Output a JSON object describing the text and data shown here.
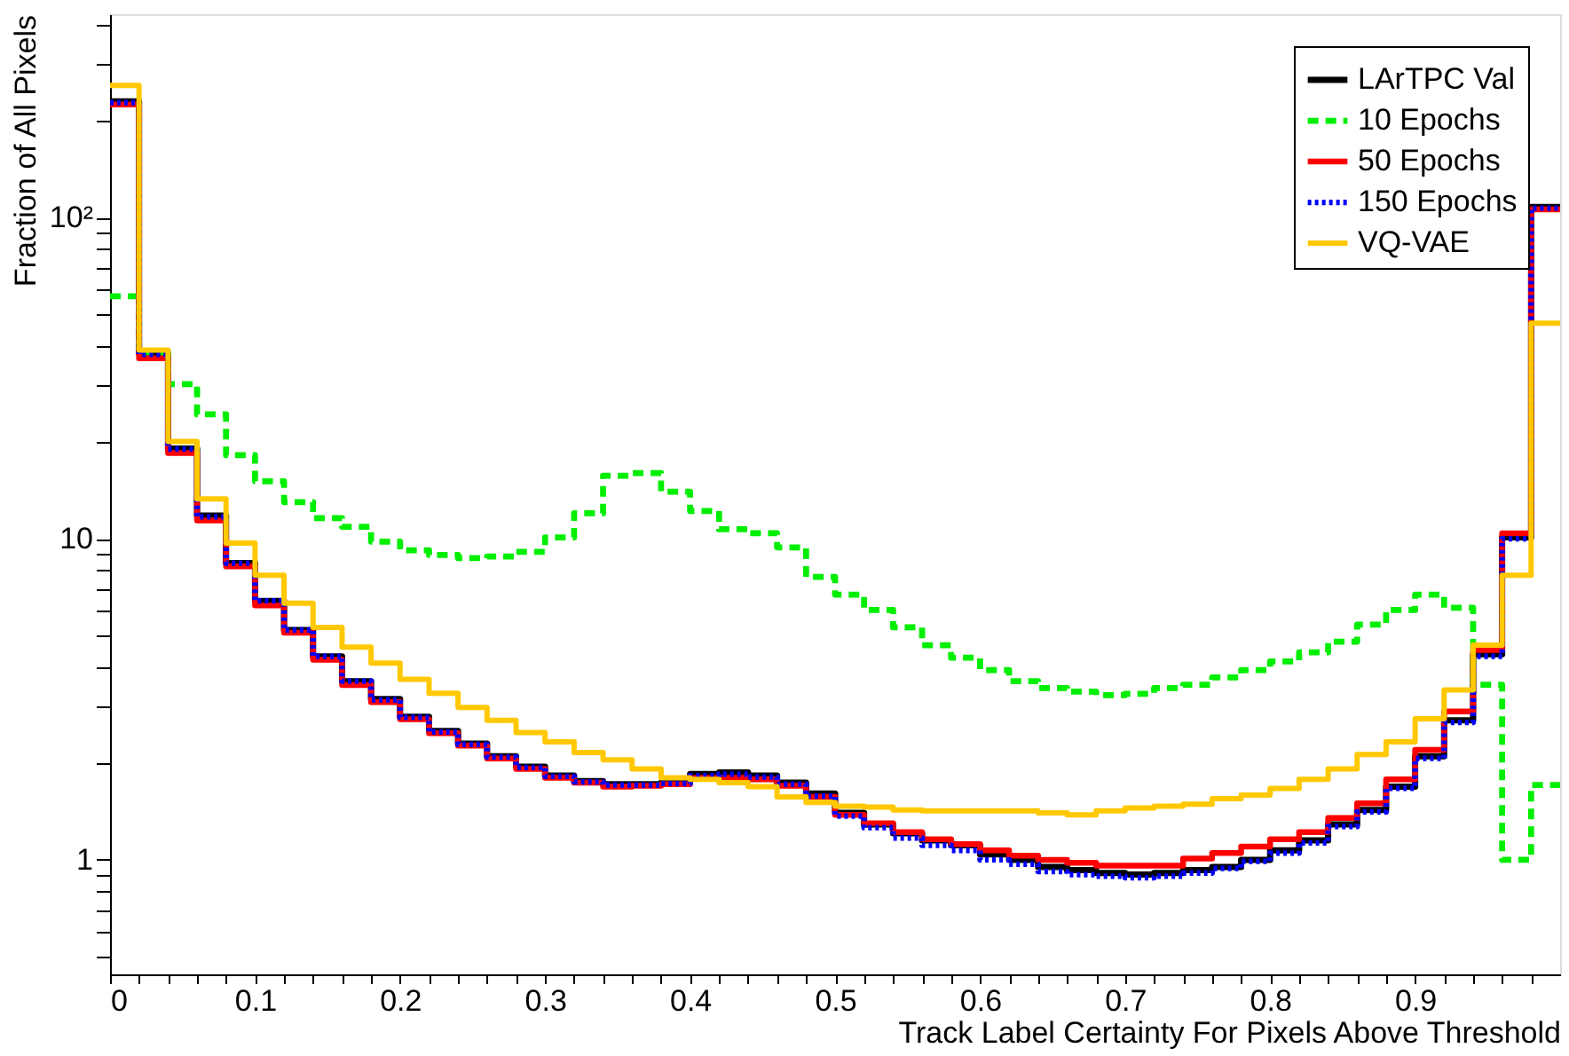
{
  "chart_data": {
    "type": "histogram",
    "xlabel": "Track Label Certainty For Pixels Above Threshold",
    "ylabel": "Fraction of All Pixels",
    "bins": [
      0,
      0.02,
      0.04,
      0.06,
      0.08,
      0.1,
      0.12,
      0.14,
      0.16,
      0.18,
      0.2,
      0.22,
      0.24,
      0.26,
      0.28,
      0.3,
      0.32,
      0.34,
      0.36,
      0.38,
      0.4,
      0.42,
      0.44,
      0.46,
      0.48,
      0.5,
      0.52,
      0.54,
      0.56,
      0.58,
      0.6,
      0.62,
      0.64,
      0.66,
      0.68,
      0.7,
      0.72,
      0.74,
      0.76,
      0.78,
      0.8,
      0.82,
      0.84,
      0.86,
      0.88,
      0.9,
      0.92,
      0.94,
      0.96,
      0.98,
      1.0
    ],
    "series": [
      {
        "name": "LArTPC Val",
        "color": "#000000",
        "line_style": "solid",
        "values": [
          230,
          37.7,
          19.1,
          11.8,
          8.4,
          6.4,
          5.2,
          4.3,
          3.6,
          3.17,
          2.79,
          2.52,
          2.3,
          2.1,
          1.95,
          1.83,
          1.76,
          1.72,
          1.72,
          1.74,
          1.85,
          1.87,
          1.83,
          1.74,
          1.61,
          1.4,
          1.29,
          1.21,
          1.15,
          1.11,
          1.04,
          1.0,
          0.95,
          0.93,
          0.91,
          0.9,
          0.91,
          0.93,
          0.95,
          1.0,
          1.07,
          1.15,
          1.29,
          1.43,
          1.69,
          2.1,
          2.72,
          4.37,
          10.1,
          108
        ]
      },
      {
        "name": "10 Epochs",
        "color": "#00ee00",
        "line_style": "dashed",
        "values": [
          56.9,
          38,
          30.3,
          24.4,
          18.2,
          15.1,
          13.0,
          11.6,
          10.9,
          9.8,
          9.2,
          8.9,
          8.7,
          8.8,
          9.1,
          10.1,
          12.0,
          15.7,
          16.0,
          14.0,
          12.2,
          10.7,
          10.4,
          9.4,
          7.6,
          6.7,
          6.0,
          5.3,
          4.66,
          4.26,
          3.9,
          3.6,
          3.43,
          3.34,
          3.26,
          3.29,
          3.43,
          3.51,
          3.7,
          3.9,
          4.15,
          4.43,
          4.78,
          5.4,
          6.0,
          6.7,
          6.1,
          3.51,
          1.0,
          1.71
        ]
      },
      {
        "name": "50 Epochs",
        "color": "#ff0000",
        "line_style": "solid",
        "values": [
          225,
          36.5,
          18.5,
          11.4,
          8.2,
          6.2,
          5.1,
          4.2,
          3.5,
          3.1,
          2.74,
          2.48,
          2.27,
          2.07,
          1.92,
          1.8,
          1.74,
          1.69,
          1.7,
          1.72,
          1.8,
          1.8,
          1.78,
          1.7,
          1.57,
          1.38,
          1.3,
          1.22,
          1.16,
          1.12,
          1.07,
          1.03,
          1.0,
          0.98,
          0.96,
          0.96,
          0.96,
          1.01,
          1.05,
          1.1,
          1.16,
          1.22,
          1.35,
          1.5,
          1.78,
          2.2,
          2.9,
          4.5,
          10.4,
          106
        ]
      },
      {
        "name": "150 Epochs",
        "color": "#0000ff",
        "line_style": "dotted",
        "values": [
          228,
          37.5,
          19.0,
          11.7,
          8.4,
          6.4,
          5.2,
          4.3,
          3.6,
          3.15,
          2.78,
          2.5,
          2.29,
          2.09,
          1.94,
          1.82,
          1.75,
          1.71,
          1.71,
          1.73,
          1.83,
          1.85,
          1.81,
          1.72,
          1.58,
          1.37,
          1.26,
          1.17,
          1.11,
          1.07,
          1.0,
          0.97,
          0.92,
          0.9,
          0.89,
          0.88,
          0.89,
          0.91,
          0.94,
          0.99,
          1.05,
          1.13,
          1.27,
          1.41,
          1.67,
          2.07,
          2.68,
          4.3,
          10.0,
          107
        ]
      },
      {
        "name": "VQ-VAE",
        "color": "#ffc800",
        "line_style": "solid",
        "values": [
          258,
          38.7,
          20.1,
          13.3,
          9.7,
          7.7,
          6.3,
          5.3,
          4.6,
          4.1,
          3.65,
          3.3,
          2.98,
          2.72,
          2.49,
          2.33,
          2.16,
          2.05,
          1.92,
          1.8,
          1.78,
          1.74,
          1.69,
          1.57,
          1.51,
          1.47,
          1.46,
          1.43,
          1.42,
          1.42,
          1.42,
          1.42,
          1.4,
          1.38,
          1.42,
          1.45,
          1.47,
          1.49,
          1.55,
          1.59,
          1.67,
          1.78,
          1.92,
          2.13,
          2.33,
          2.75,
          3.38,
          4.66,
          7.7,
          46.9
        ]
      }
    ],
    "xlim": [
      0,
      1
    ],
    "xticks": [
      0,
      {
        "value": 0.02,
        "label": null
      },
      {
        "value": 0.04,
        "label": null
      },
      {
        "value": 0.06,
        "label": null
      },
      {
        "value": 0.08,
        "label": null
      },
      0.1,
      {
        "value": 0.12,
        "label": null
      },
      {
        "value": 0.14,
        "label": null
      },
      {
        "value": 0.16,
        "label": null
      },
      {
        "value": 0.18,
        "label": null
      },
      0.2,
      {
        "value": 0.22,
        "label": null
      },
      {
        "value": 0.24,
        "label": null
      },
      {
        "value": 0.26,
        "label": null
      },
      {
        "value": 0.28,
        "label": null
      },
      0.3,
      {
        "value": 0.32,
        "label": null
      },
      {
        "value": 0.34,
        "label": null
      },
      {
        "value": 0.36,
        "label": null
      },
      {
        "value": 0.38,
        "label": null
      },
      0.4,
      {
        "value": 0.42,
        "label": null
      },
      {
        "value": 0.44,
        "label": null
      },
      {
        "value": 0.46,
        "label": null
      },
      {
        "value": 0.48,
        "label": null
      },
      0.5,
      {
        "value": 0.52,
        "label": null
      },
      {
        "value": 0.54,
        "label": null
      },
      {
        "value": 0.56,
        "label": null
      },
      {
        "value": 0.58,
        "label": null
      },
      0.6,
      {
        "value": 0.62,
        "label": null
      },
      {
        "value": 0.64,
        "label": null
      },
      {
        "value": 0.66,
        "label": null
      },
      {
        "value": 0.68,
        "label": null
      },
      0.7,
      {
        "value": 0.72,
        "label": null
      },
      {
        "value": 0.74,
        "label": null
      },
      {
        "value": 0.76,
        "label": null
      },
      {
        "value": 0.78,
        "label": null
      },
      0.8,
      {
        "value": 0.82,
        "label": null
      },
      {
        "value": 0.84,
        "label": null
      },
      {
        "value": 0.86,
        "label": null
      },
      {
        "value": 0.88,
        "label": null
      },
      0.9,
      {
        "value": 0.92,
        "label": null
      },
      {
        "value": 0.94,
        "label": null
      },
      {
        "value": 0.96,
        "label": null
      },
      {
        "value": 0.98,
        "label": null
      }
    ],
    "ylim": [
      0.44,
      430
    ],
    "yticks": [
      {
        "value": 0.5,
        "label": null
      },
      {
        "value": 0.6,
        "label": null
      },
      {
        "value": 0.7,
        "label": null
      },
      {
        "value": 0.8,
        "label": null
      },
      {
        "value": 0.9,
        "label": null
      },
      1,
      {
        "value": 2,
        "label": null
      },
      {
        "value": 3,
        "label": null
      },
      {
        "value": 4,
        "label": null
      },
      {
        "value": 5,
        "label": null
      },
      {
        "value": 6,
        "label": null
      },
      {
        "value": 7,
        "label": null
      },
      {
        "value": 8,
        "label": null
      },
      {
        "value": 9,
        "label": null
      },
      10,
      {
        "value": 20,
        "label": null
      },
      {
        "value": 30,
        "label": null
      },
      {
        "value": 40,
        "label": null
      },
      {
        "value": 50,
        "label": null
      },
      {
        "value": 60,
        "label": null
      },
      {
        "value": 70,
        "label": null
      },
      {
        "value": 80,
        "label": null
      },
      {
        "value": 90,
        "label": null
      },
      {
        "value": 100,
        "label": "10²"
      },
      {
        "value": 200,
        "label": null
      },
      {
        "value": 300,
        "label": null
      },
      {
        "value": 400,
        "label": null
      }
    ],
    "log": "y",
    "grid": false,
    "legend": "top right"
  }
}
